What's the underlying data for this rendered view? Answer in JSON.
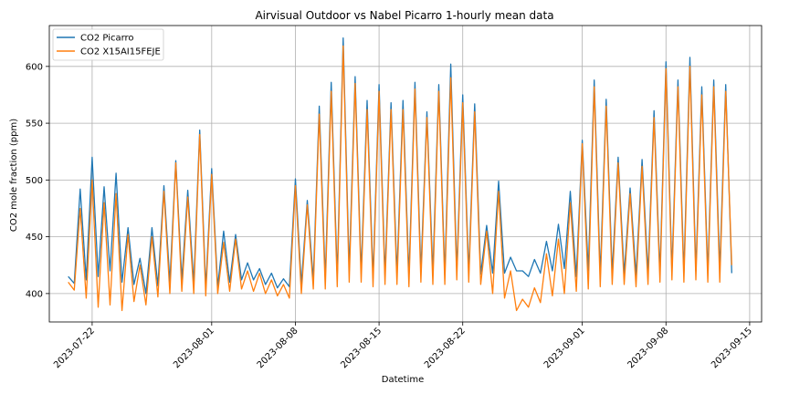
{
  "chart_data": {
    "type": "line",
    "title": "Airvisual Outdoor vs Nabel Picarro 1-hourly mean data",
    "xlabel": "Datetime",
    "ylabel": "CO2 mole fraction (ppm)",
    "xlim": [
      "2023-07-18T10:00",
      "2023-09-16T00:00"
    ],
    "ylim": [
      375,
      636
    ],
    "x_ticks": [
      "2023-07-22",
      "2023-08-01",
      "2023-08-08",
      "2023-08-15",
      "2023-08-22",
      "2023-09-01",
      "2023-09-08",
      "2023-09-15"
    ],
    "y_ticks": [
      400,
      450,
      500,
      550,
      600
    ],
    "grid": true,
    "legend": "top-left",
    "series": [
      {
        "name": "CO2 Picarro",
        "color": "#1f77b4",
        "x": [
          "2023-07-20T00:00",
          "2023-07-20T12:00",
          "2023-07-21T00:00",
          "2023-07-21T12:00",
          "2023-07-22T00:00",
          "2023-07-22T12:00",
          "2023-07-23T00:00",
          "2023-07-23T12:00",
          "2023-07-24T00:00",
          "2023-07-24T12:00",
          "2023-07-25T00:00",
          "2023-07-25T12:00",
          "2023-07-26T00:00",
          "2023-07-26T12:00",
          "2023-07-27T00:00",
          "2023-07-27T12:00",
          "2023-07-28T00:00",
          "2023-07-28T12:00",
          "2023-07-29T00:00",
          "2023-07-29T12:00",
          "2023-07-30T00:00",
          "2023-07-30T12:00",
          "2023-07-31T00:00",
          "2023-07-31T12:00",
          "2023-08-01T00:00",
          "2023-08-01T12:00",
          "2023-08-02T00:00",
          "2023-08-02T12:00",
          "2023-08-03T00:00",
          "2023-08-03T12:00",
          "2023-08-04T00:00",
          "2023-08-04T12:00",
          "2023-08-05T00:00",
          "2023-08-05T12:00",
          "2023-08-06T00:00",
          "2023-08-06T12:00",
          "2023-08-07T00:00",
          "2023-08-07T12:00",
          "2023-08-08T00:00",
          "2023-08-08T12:00",
          "2023-08-09T00:00",
          "2023-08-09T12:00",
          "2023-08-10T00:00",
          "2023-08-10T12:00",
          "2023-08-11T00:00",
          "2023-08-11T12:00",
          "2023-08-12T00:00",
          "2023-08-12T12:00",
          "2023-08-13T00:00",
          "2023-08-13T12:00",
          "2023-08-14T00:00",
          "2023-08-14T12:00",
          "2023-08-15T00:00",
          "2023-08-15T12:00",
          "2023-08-16T00:00",
          "2023-08-16T12:00",
          "2023-08-17T00:00",
          "2023-08-17T12:00",
          "2023-08-18T00:00",
          "2023-08-18T12:00",
          "2023-08-19T00:00",
          "2023-08-19T12:00",
          "2023-08-20T00:00",
          "2023-08-20T12:00",
          "2023-08-21T00:00",
          "2023-08-21T12:00",
          "2023-08-22T00:00",
          "2023-08-22T12:00",
          "2023-08-23T00:00",
          "2023-08-23T12:00",
          "2023-08-24T00:00",
          "2023-08-24T12:00",
          "2023-08-25T00:00",
          "2023-08-25T12:00",
          "2023-08-26T00:00",
          "2023-08-26T12:00",
          "2023-08-27T00:00",
          "2023-08-27T12:00",
          "2023-08-28T00:00",
          "2023-08-28T12:00",
          "2023-08-29T00:00",
          "2023-08-29T12:00",
          "2023-08-30T00:00",
          "2023-08-30T12:00",
          "2023-08-31T00:00",
          "2023-08-31T12:00",
          "2023-09-01T00:00",
          "2023-09-01T12:00",
          "2023-09-02T00:00",
          "2023-09-02T12:00",
          "2023-09-03T00:00",
          "2023-09-03T12:00",
          "2023-09-04T00:00",
          "2023-09-04T12:00",
          "2023-09-05T00:00",
          "2023-09-05T12:00",
          "2023-09-06T00:00",
          "2023-09-06T12:00",
          "2023-09-07T00:00",
          "2023-09-07T12:00",
          "2023-09-08T00:00",
          "2023-09-08T12:00",
          "2023-09-09T00:00",
          "2023-09-09T12:00",
          "2023-09-10T00:00",
          "2023-09-10T12:00",
          "2023-09-11T00:00",
          "2023-09-11T12:00",
          "2023-09-12T00:00",
          "2023-09-12T12:00",
          "2023-09-13T00:00",
          "2023-09-13T12:00"
        ],
        "values": [
          415,
          409,
          492,
          412,
          520,
          415,
          494,
          420,
          506,
          410,
          458,
          408,
          431,
          400,
          458,
          407,
          495,
          410,
          517,
          412,
          491,
          409,
          544,
          405,
          510,
          406,
          455,
          410,
          452,
          412,
          427,
          412,
          422,
          408,
          418,
          405,
          413,
          406,
          501,
          408,
          482,
          412,
          565,
          413,
          586,
          415,
          625,
          420,
          591,
          418,
          570,
          414,
          584,
          416,
          568,
          417,
          570,
          415,
          586,
          419,
          560,
          418,
          584,
          416,
          602,
          420,
          575,
          418,
          567,
          417,
          460,
          418,
          499,
          418,
          432,
          420,
          420,
          415,
          430,
          418,
          446,
          420,
          461,
          422,
          490,
          415,
          535,
          420,
          588,
          416,
          571,
          418,
          520,
          417,
          493,
          416,
          518,
          418,
          561,
          418,
          604,
          420,
          588,
          418,
          608,
          420,
          582,
          418,
          588,
          420,
          584,
          418
        ],
        "pixel_ignore": null
      },
      {
        "name": "CO2 X15AI15FEJE",
        "color": "#ff7f0e",
        "x": [
          "2023-07-20T00:00",
          "2023-07-20T12:00",
          "2023-07-21T00:00",
          "2023-07-21T12:00",
          "2023-07-22T00:00",
          "2023-07-22T12:00",
          "2023-07-23T00:00",
          "2023-07-23T12:00",
          "2023-07-24T00:00",
          "2023-07-24T12:00",
          "2023-07-25T00:00",
          "2023-07-25T12:00",
          "2023-07-26T00:00",
          "2023-07-26T12:00",
          "2023-07-27T00:00",
          "2023-07-27T12:00",
          "2023-07-28T00:00",
          "2023-07-28T12:00",
          "2023-07-29T00:00",
          "2023-07-29T12:00",
          "2023-07-30T00:00",
          "2023-07-30T12:00",
          "2023-07-31T00:00",
          "2023-07-31T12:00",
          "2023-08-01T00:00",
          "2023-08-01T12:00",
          "2023-08-02T00:00",
          "2023-08-02T12:00",
          "2023-08-03T00:00",
          "2023-08-03T12:00",
          "2023-08-04T00:00",
          "2023-08-04T12:00",
          "2023-08-05T00:00",
          "2023-08-05T12:00",
          "2023-08-06T00:00",
          "2023-08-06T12:00",
          "2023-08-07T00:00",
          "2023-08-07T12:00",
          "2023-08-08T00:00",
          "2023-08-08T12:00",
          "2023-08-09T00:00",
          "2023-08-09T12:00",
          "2023-08-10T00:00",
          "2023-08-10T12:00",
          "2023-08-11T00:00",
          "2023-08-11T12:00",
          "2023-08-12T00:00",
          "2023-08-12T12:00",
          "2023-08-13T00:00",
          "2023-08-13T12:00",
          "2023-08-14T00:00",
          "2023-08-14T12:00",
          "2023-08-15T00:00",
          "2023-08-15T12:00",
          "2023-08-16T00:00",
          "2023-08-16T12:00",
          "2023-08-17T00:00",
          "2023-08-17T12:00",
          "2023-08-18T00:00",
          "2023-08-18T12:00",
          "2023-08-19T00:00",
          "2023-08-19T12:00",
          "2023-08-20T00:00",
          "2023-08-20T12:00",
          "2023-08-21T00:00",
          "2023-08-21T12:00",
          "2023-08-22T00:00",
          "2023-08-22T12:00",
          "2023-08-23T00:00",
          "2023-08-23T12:00",
          "2023-08-24T00:00",
          "2023-08-24T12:00",
          "2023-08-25T00:00",
          "2023-08-25T12:00",
          "2023-08-26T00:00",
          "2023-08-26T12:00",
          "2023-08-27T00:00",
          "2023-08-27T12:00",
          "2023-08-28T00:00",
          "2023-08-28T12:00",
          "2023-08-29T00:00",
          "2023-08-29T12:00",
          "2023-08-30T00:00",
          "2023-08-30T12:00",
          "2023-08-31T00:00",
          "2023-08-31T12:00",
          "2023-09-01T00:00",
          "2023-09-01T12:00",
          "2023-09-02T00:00",
          "2023-09-02T12:00",
          "2023-09-03T00:00",
          "2023-09-03T12:00",
          "2023-09-04T00:00",
          "2023-09-04T12:00",
          "2023-09-05T00:00",
          "2023-09-05T12:00",
          "2023-09-06T00:00",
          "2023-09-06T12:00",
          "2023-09-07T00:00",
          "2023-09-07T12:00",
          "2023-09-08T00:00",
          "2023-09-08T12:00",
          "2023-09-09T00:00",
          "2023-09-09T12:00",
          "2023-09-10T00:00",
          "2023-09-10T12:00",
          "2023-09-11T00:00",
          "2023-09-11T12:00",
          "2023-09-12T00:00",
          "2023-09-12T12:00",
          "2023-09-13T00:00",
          "2023-09-13T12:00"
        ],
        "values": [
          410,
          403,
          475,
          396,
          500,
          388,
          480,
          390,
          488,
          385,
          452,
          393,
          425,
          390,
          450,
          397,
          490,
          400,
          515,
          402,
          485,
          400,
          540,
          398,
          505,
          400,
          445,
          402,
          448,
          404,
          420,
          402,
          418,
          400,
          412,
          398,
          408,
          396,
          495,
          400,
          478,
          404,
          558,
          404,
          578,
          406,
          618,
          410,
          585,
          410,
          562,
          406,
          578,
          408,
          562,
          408,
          562,
          406,
          580,
          410,
          555,
          408,
          578,
          408,
          590,
          412,
          568,
          410,
          560,
          408,
          455,
          400,
          490,
          396,
          420,
          385,
          395,
          388,
          405,
          392,
          435,
          398,
          448,
          400,
          480,
          402,
          532,
          404,
          582,
          406,
          565,
          408,
          515,
          408,
          488,
          406,
          512,
          408,
          555,
          410,
          598,
          412,
          582,
          410,
          600,
          412,
          575,
          410,
          582,
          410,
          578,
          425
        ]
      }
    ]
  }
}
